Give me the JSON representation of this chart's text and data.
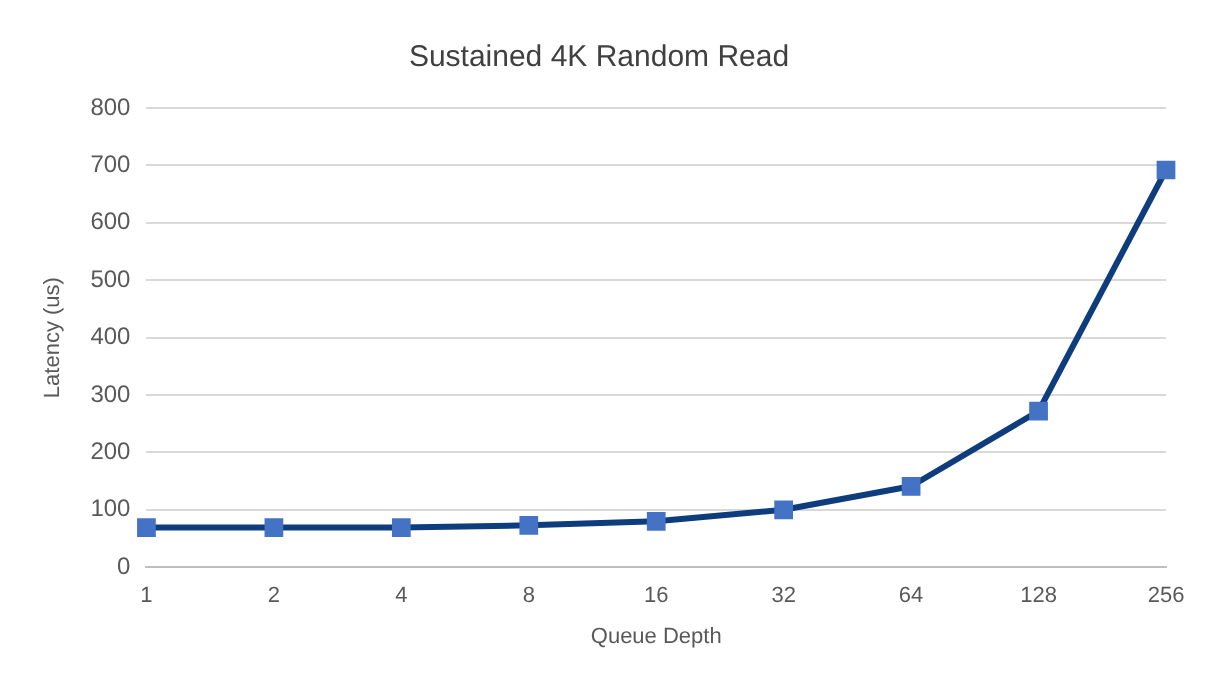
{
  "chart_data": {
    "type": "line",
    "title": "Sustained 4K Random Read",
    "xlabel": "Queue Depth",
    "ylabel": "Latency (us)",
    "categories": [
      "1",
      "2",
      "4",
      "8",
      "16",
      "32",
      "64",
      "128",
      "256"
    ],
    "series": [
      {
        "color": "#0e3d7d",
        "colors": [
          "#4472c4",
          "#4472c4",
          "#4472c4",
          "#4472c4",
          "#4472c4",
          "#4472c4",
          "#4472c4",
          "#4472c4",
          "#4472c4"
        ],
        "values": [
          69,
          69,
          69,
          73,
          80,
          100,
          141,
          272,
          692
        ]
      }
    ],
    "ylim": [
      0,
      800
    ],
    "yticks": [
      0,
      100,
      200,
      300,
      400,
      500,
      600,
      700,
      800
    ],
    "grid": "y",
    "legend": false,
    "marker": "square",
    "line_style": "solid"
  }
}
